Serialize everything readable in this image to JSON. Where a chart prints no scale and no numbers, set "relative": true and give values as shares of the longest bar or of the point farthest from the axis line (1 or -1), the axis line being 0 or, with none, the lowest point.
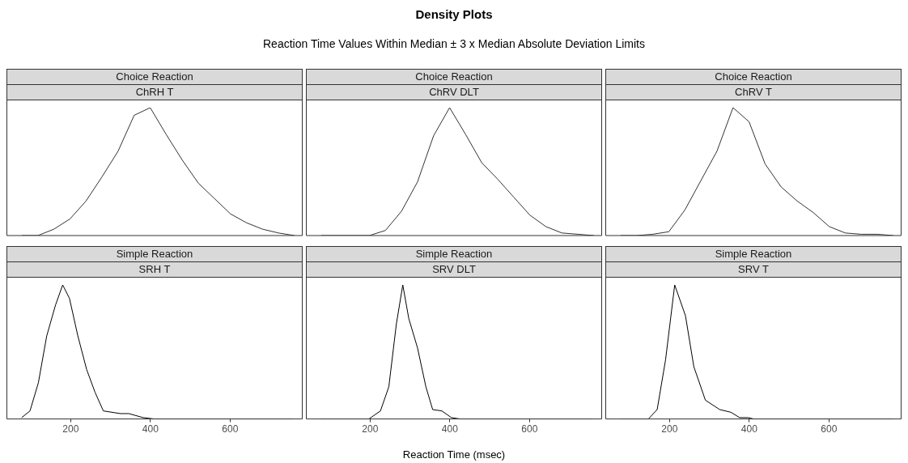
{
  "chart_data": [
    {
      "type": "other",
      "title": "Density Plots",
      "subtitle": "Reaction Time Values Within Median ± 3 x Median Absolute Deviation Limits"
    },
    {
      "type": "line",
      "title": "Choice Reaction",
      "subtitle": "ChRH T",
      "relative": true,
      "categories": [
        null,
        null,
        null,
        null,
        null,
        null,
        null,
        null,
        null,
        null,
        null,
        null,
        null,
        null,
        null,
        null,
        null,
        null
      ],
      "tick_labels": false,
      "grid": false,
      "legend": false,
      "marker": "none",
      "line_style": "solid",
      "series": [
        {
          "color": "#333333",
          "values": [
            0,
            0,
            0.05,
            0.13,
            0.27,
            0.46,
            0.66,
            0.94,
            1,
            0.79,
            0.59,
            0.41,
            0.29,
            0.17,
            0.1,
            0.05,
            0.02,
            0
          ]
        }
      ]
    },
    {
      "type": "line",
      "title": "Choice Reaction",
      "subtitle": "ChRV DLT",
      "relative": true,
      "categories": [
        null,
        null,
        null,
        null,
        null,
        null,
        null,
        null,
        null,
        null,
        null,
        null,
        null,
        null,
        null,
        null,
        null,
        null
      ],
      "tick_labels": false,
      "grid": false,
      "legend": false,
      "marker": "none",
      "line_style": "solid",
      "series": [
        {
          "color": "#333333",
          "values": [
            0,
            0,
            0,
            0,
            0.04,
            0.19,
            0.42,
            0.78,
            1,
            0.79,
            0.57,
            0.44,
            0.3,
            0.16,
            0.07,
            0.02,
            0.01,
            0
          ]
        }
      ]
    },
    {
      "type": "line",
      "title": "Choice Reaction",
      "subtitle": "ChRV T",
      "relative": true,
      "categories": [
        null,
        null,
        null,
        null,
        null,
        null,
        null,
        null,
        null,
        null,
        null,
        null,
        null,
        null,
        null,
        null,
        null,
        null
      ],
      "tick_labels": false,
      "grid": false,
      "legend": false,
      "marker": "none",
      "line_style": "solid",
      "series": [
        {
          "color": "#333333",
          "values": [
            0,
            0,
            0.01,
            0.03,
            0.2,
            0.43,
            0.66,
            1,
            0.89,
            0.56,
            0.38,
            0.27,
            0.18,
            0.07,
            0.02,
            0.01,
            0.01,
            0
          ]
        }
      ]
    },
    {
      "type": "line",
      "title": "Simple Reaction",
      "subtitle": "SRH T",
      "relative": true,
      "xlim": [
        41,
        780
      ],
      "xticks": [
        200,
        400,
        600
      ],
      "tick_labels": "x",
      "grid": false,
      "legend": false,
      "marker": "none",
      "line_style": "solid",
      "series": [
        {
          "color": "#000000",
          "x": [
            77,
            98,
            119,
            140,
            162,
            180,
            197,
            218,
            240,
            261,
            282,
            325,
            346,
            382,
            410,
            758
          ],
          "values": [
            0.01,
            0.06,
            0.27,
            0.62,
            0.85,
            1,
            0.9,
            0.62,
            0.37,
            0.2,
            0.06,
            0.04,
            0.04,
            0.01,
            0,
            0
          ]
        }
      ]
    },
    {
      "type": "line",
      "title": "Simple Reaction",
      "subtitle": "SRV DLT",
      "xlabel": "Reaction Time (msec)",
      "relative": true,
      "xlim": [
        41,
        780
      ],
      "xticks": [
        200,
        400,
        600
      ],
      "tick_labels": "x",
      "grid": false,
      "legend": false,
      "marker": "none",
      "line_style": "solid",
      "series": [
        {
          "color": "#000000",
          "x": [
            77,
            197,
            226,
            247,
            266,
            282,
            297,
            319,
            340,
            357,
            380,
            404,
            426,
            758
          ],
          "values": [
            0,
            0,
            0.06,
            0.24,
            0.71,
            1,
            0.75,
            0.53,
            0.24,
            0.07,
            0.06,
            0.01,
            0,
            0
          ]
        }
      ]
    },
    {
      "type": "line",
      "title": "Simple Reaction",
      "subtitle": "SRV T",
      "relative": true,
      "xlim": [
        41,
        780
      ],
      "xticks": [
        200,
        400,
        600
      ],
      "tick_labels": "x",
      "grid": false,
      "legend": false,
      "marker": "none",
      "line_style": "solid",
      "series": [
        {
          "color": "#000000",
          "x": [
            77,
            147,
            169,
            190,
            213,
            240,
            261,
            290,
            326,
            354,
            376,
            397,
            411,
            758
          ],
          "values": [
            0,
            0,
            0.07,
            0.44,
            1,
            0.77,
            0.39,
            0.14,
            0.07,
            0.05,
            0.01,
            0.01,
            0,
            0
          ]
        }
      ]
    }
  ]
}
